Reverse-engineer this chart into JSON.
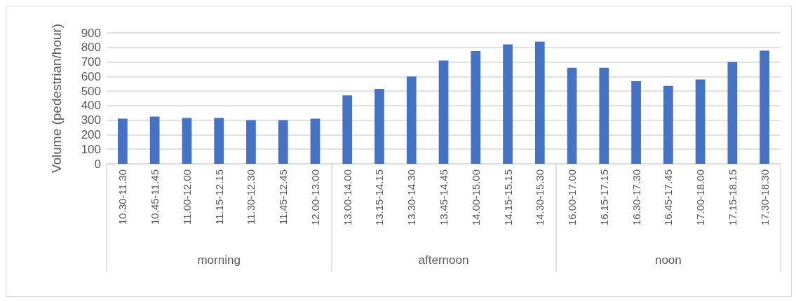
{
  "chart_data": {
    "type": "bar",
    "ylabel": "Volume (pedestrian/hour)",
    "categories": [
      "10.30-11.30",
      "10.45-11.45",
      "11.00-12.00",
      "11.15-12.15",
      "11.30-12.30",
      "11.45-12.45",
      "12.00-13.00",
      "13.00-14.00",
      "13.15-14.15",
      "13.30-14.30",
      "13.45-14.45",
      "14.00-15.00",
      "14.15-15.15",
      "14.30-15.30",
      "16.00-17.00",
      "16.15-17.15",
      "16.30-17.30",
      "16.45-17.45",
      "17.00-18.00",
      "17.15-18.15",
      "17.30-18.30"
    ],
    "values": [
      310,
      325,
      315,
      315,
      300,
      300,
      310,
      470,
      515,
      600,
      710,
      775,
      820,
      840,
      660,
      660,
      568,
      535,
      580,
      700,
      778
    ],
    "color": "#4472c4",
    "ylim": [
      0,
      900
    ],
    "yticks": [
      0,
      100,
      200,
      300,
      400,
      500,
      600,
      700,
      800,
      900
    ],
    "grid": "y",
    "annotations": [
      "morning",
      "afternoon",
      "noon"
    ]
  }
}
